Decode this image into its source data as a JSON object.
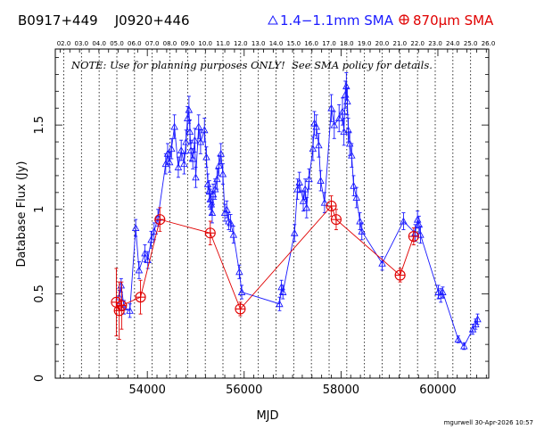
{
  "header": {
    "source_names": "B0917+449    J0920+446",
    "legend_band1_label": "1.4−1.1mm SMA",
    "legend_band2_label_prefix": "870",
    "legend_band2_label_suffix": "m SMA",
    "note": "NOTE: Use for planning purposes ONLY!  See SMA policy for details.",
    "footer_credit": "mgurwell 30-Apr-2026 10:57"
  },
  "colors": {
    "band1": "#1a1aff",
    "band2": "#e00000",
    "axis": "#000000"
  },
  "chart_data": {
    "type": "scatter",
    "xlabel": "MJD",
    "ylabel": "Database Flux (Jy)",
    "xlim": [
      52100,
      61050
    ],
    "ylim": [
      0,
      1.95
    ],
    "x_ticks": [
      54000,
      56000,
      58000,
      60000
    ],
    "y_ticks": [
      0,
      0.5,
      1,
      1.5
    ],
    "year_ticks": [
      {
        "label": "02.0",
        "mjd": 52275
      },
      {
        "label": "03.0",
        "mjd": 52640
      },
      {
        "label": "04.0",
        "mjd": 53005
      },
      {
        "label": "05.0",
        "mjd": 53371
      },
      {
        "label": "06.0",
        "mjd": 53736
      },
      {
        "label": "07.0",
        "mjd": 54101
      },
      {
        "label": "08.0",
        "mjd": 54466
      },
      {
        "label": "09.0",
        "mjd": 54832
      },
      {
        "label": "10.0",
        "mjd": 55197
      },
      {
        "label": "11.0",
        "mjd": 55562
      },
      {
        "label": "12.0",
        "mjd": 55927
      },
      {
        "label": "13.0",
        "mjd": 56293
      },
      {
        "label": "14.0",
        "mjd": 56658
      },
      {
        "label": "15.0",
        "mjd": 57023
      },
      {
        "label": "16.0",
        "mjd": 57388
      },
      {
        "label": "17.0",
        "mjd": 57754
      },
      {
        "label": "18.0",
        "mjd": 58119
      },
      {
        "label": "19.0",
        "mjd": 58484
      },
      {
        "label": "20.0",
        "mjd": 58849
      },
      {
        "label": "21.0",
        "mjd": 59215
      },
      {
        "label": "22.0",
        "mjd": 59580
      },
      {
        "label": "23.0",
        "mjd": 59945
      },
      {
        "label": "24.0",
        "mjd": 60310
      },
      {
        "label": "25.0",
        "mjd": 60676
      },
      {
        "label": "26.0",
        "mjd": 61041
      }
    ],
    "series": [
      {
        "name": "1.4−1.1mm SMA",
        "marker": "triangle",
        "points": [
          {
            "x": 53420,
            "y": 0.48,
            "err": 0.04
          },
          {
            "x": 53460,
            "y": 0.55,
            "err": 0.04
          },
          {
            "x": 53520,
            "y": 0.42,
            "err": 0.04
          },
          {
            "x": 53640,
            "y": 0.4,
            "err": 0.04
          },
          {
            "x": 53760,
            "y": 0.89,
            "err": 0.05
          },
          {
            "x": 53830,
            "y": 0.64,
            "err": 0.05
          },
          {
            "x": 53950,
            "y": 0.74,
            "err": 0.05
          },
          {
            "x": 54010,
            "y": 0.7,
            "err": 0.05
          },
          {
            "x": 54080,
            "y": 0.82,
            "err": 0.05
          },
          {
            "x": 54140,
            "y": 0.87,
            "err": 0.05
          },
          {
            "x": 54220,
            "y": 0.95,
            "err": 0.05
          },
          {
            "x": 54380,
            "y": 1.27,
            "err": 0.06
          },
          {
            "x": 54420,
            "y": 1.33,
            "err": 0.06
          },
          {
            "x": 54460,
            "y": 1.28,
            "err": 0.06
          },
          {
            "x": 54500,
            "y": 1.36,
            "err": 0.06
          },
          {
            "x": 54560,
            "y": 1.49,
            "err": 0.07
          },
          {
            "x": 54640,
            "y": 1.25,
            "err": 0.06
          },
          {
            "x": 54700,
            "y": 1.35,
            "err": 0.06
          },
          {
            "x": 54760,
            "y": 1.27,
            "err": 0.06
          },
          {
            "x": 54800,
            "y": 1.4,
            "err": 0.07
          },
          {
            "x": 54830,
            "y": 1.54,
            "err": 0.07
          },
          {
            "x": 54860,
            "y": 1.59,
            "err": 0.08
          },
          {
            "x": 54880,
            "y": 1.46,
            "err": 0.07
          },
          {
            "x": 54900,
            "y": 1.35,
            "err": 0.06
          },
          {
            "x": 54940,
            "y": 1.3,
            "err": 0.06
          },
          {
            "x": 54980,
            "y": 1.41,
            "err": 0.07
          },
          {
            "x": 55000,
            "y": 1.19,
            "err": 0.06
          },
          {
            "x": 55060,
            "y": 1.49,
            "err": 0.07
          },
          {
            "x": 55100,
            "y": 1.4,
            "err": 0.07
          },
          {
            "x": 55180,
            "y": 1.47,
            "err": 0.07
          },
          {
            "x": 55220,
            "y": 1.31,
            "err": 0.06
          },
          {
            "x": 55250,
            "y": 1.15,
            "err": 0.06
          },
          {
            "x": 55280,
            "y": 1.11,
            "err": 0.06
          },
          {
            "x": 55300,
            "y": 1.06,
            "err": 0.06
          },
          {
            "x": 55320,
            "y": 1.03,
            "err": 0.06
          },
          {
            "x": 55340,
            "y": 0.98,
            "err": 0.06
          },
          {
            "x": 55360,
            "y": 1.09,
            "err": 0.06
          },
          {
            "x": 55400,
            "y": 1.12,
            "err": 0.06
          },
          {
            "x": 55440,
            "y": 1.18,
            "err": 0.06
          },
          {
            "x": 55480,
            "y": 1.26,
            "err": 0.06
          },
          {
            "x": 55520,
            "y": 1.33,
            "err": 0.06
          },
          {
            "x": 55560,
            "y": 1.21,
            "err": 0.06
          },
          {
            "x": 55600,
            "y": 0.98,
            "err": 0.05
          },
          {
            "x": 55640,
            "y": 1.0,
            "err": 0.05
          },
          {
            "x": 55680,
            "y": 0.93,
            "err": 0.05
          },
          {
            "x": 55720,
            "y": 0.92,
            "err": 0.05
          },
          {
            "x": 55780,
            "y": 0.85,
            "err": 0.05
          },
          {
            "x": 55900,
            "y": 0.63,
            "err": 0.04
          },
          {
            "x": 55950,
            "y": 0.51,
            "err": 0.04
          },
          {
            "x": 56730,
            "y": 0.44,
            "err": 0.04
          },
          {
            "x": 56770,
            "y": 0.54,
            "err": 0.04
          },
          {
            "x": 56800,
            "y": 0.51,
            "err": 0.04
          },
          {
            "x": 57040,
            "y": 0.86,
            "err": 0.05
          },
          {
            "x": 57100,
            "y": 1.12,
            "err": 0.06
          },
          {
            "x": 57140,
            "y": 1.16,
            "err": 0.06
          },
          {
            "x": 57220,
            "y": 1.05,
            "err": 0.06
          },
          {
            "x": 57260,
            "y": 1.12,
            "err": 0.06
          },
          {
            "x": 57290,
            "y": 1.01,
            "err": 0.06
          },
          {
            "x": 57340,
            "y": 1.18,
            "err": 0.06
          },
          {
            "x": 57420,
            "y": 1.36,
            "err": 0.07
          },
          {
            "x": 57450,
            "y": 1.51,
            "err": 0.07
          },
          {
            "x": 57490,
            "y": 1.49,
            "err": 0.07
          },
          {
            "x": 57540,
            "y": 1.38,
            "err": 0.07
          },
          {
            "x": 57580,
            "y": 1.17,
            "err": 0.06
          },
          {
            "x": 57660,
            "y": 1.04,
            "err": 0.06
          },
          {
            "x": 57800,
            "y": 1.6,
            "err": 0.08
          },
          {
            "x": 57860,
            "y": 1.5,
            "err": 0.08
          },
          {
            "x": 57960,
            "y": 1.54,
            "err": 0.08
          },
          {
            "x": 58030,
            "y": 1.58,
            "err": 0.08
          },
          {
            "x": 58060,
            "y": 1.46,
            "err": 0.08
          },
          {
            "x": 58090,
            "y": 1.68,
            "err": 0.08
          },
          {
            "x": 58110,
            "y": 1.73,
            "err": 0.08
          },
          {
            "x": 58130,
            "y": 1.64,
            "err": 0.08
          },
          {
            "x": 58150,
            "y": 1.47,
            "err": 0.07
          },
          {
            "x": 58180,
            "y": 1.39,
            "err": 0.07
          },
          {
            "x": 58220,
            "y": 1.32,
            "err": 0.07
          },
          {
            "x": 58260,
            "y": 1.14,
            "err": 0.06
          },
          {
            "x": 58320,
            "y": 1.07,
            "err": 0.06
          },
          {
            "x": 58390,
            "y": 0.93,
            "err": 0.05
          },
          {
            "x": 58430,
            "y": 0.87,
            "err": 0.05
          },
          {
            "x": 58850,
            "y": 0.68,
            "err": 0.04
          },
          {
            "x": 59290,
            "y": 0.93,
            "err": 0.05
          },
          {
            "x": 59530,
            "y": 0.86,
            "err": 0.05
          },
          {
            "x": 59580,
            "y": 0.94,
            "err": 0.05
          },
          {
            "x": 59610,
            "y": 0.91,
            "err": 0.05
          },
          {
            "x": 59640,
            "y": 0.85,
            "err": 0.05
          },
          {
            "x": 60010,
            "y": 0.51,
            "err": 0.04
          },
          {
            "x": 60060,
            "y": 0.49,
            "err": 0.04
          },
          {
            "x": 60100,
            "y": 0.51,
            "err": 0.03
          },
          {
            "x": 60420,
            "y": 0.23,
            "err": 0.02
          },
          {
            "x": 60540,
            "y": 0.19,
            "err": 0.02
          },
          {
            "x": 60720,
            "y": 0.29,
            "err": 0.03
          },
          {
            "x": 60780,
            "y": 0.32,
            "err": 0.03
          },
          {
            "x": 60820,
            "y": 0.35,
            "err": 0.03
          }
        ]
      },
      {
        "name": "870μm SMA",
        "marker": "circle-plus",
        "points": [
          {
            "x": 53360,
            "y": 0.45,
            "err": 0.2
          },
          {
            "x": 53420,
            "y": 0.4,
            "err": 0.17
          },
          {
            "x": 53470,
            "y": 0.43,
            "err": 0.14
          },
          {
            "x": 53860,
            "y": 0.48,
            "err": 0.1
          },
          {
            "x": 54260,
            "y": 0.94,
            "err": 0.07
          },
          {
            "x": 55300,
            "y": 0.86,
            "err": 0.07
          },
          {
            "x": 55920,
            "y": 0.41,
            "err": 0.04
          },
          {
            "x": 57800,
            "y": 1.02,
            "err": 0.06
          },
          {
            "x": 57900,
            "y": 0.94,
            "err": 0.06
          },
          {
            "x": 59220,
            "y": 0.61,
            "err": 0.04
          },
          {
            "x": 59500,
            "y": 0.84,
            "err": 0.05
          }
        ]
      }
    ]
  }
}
